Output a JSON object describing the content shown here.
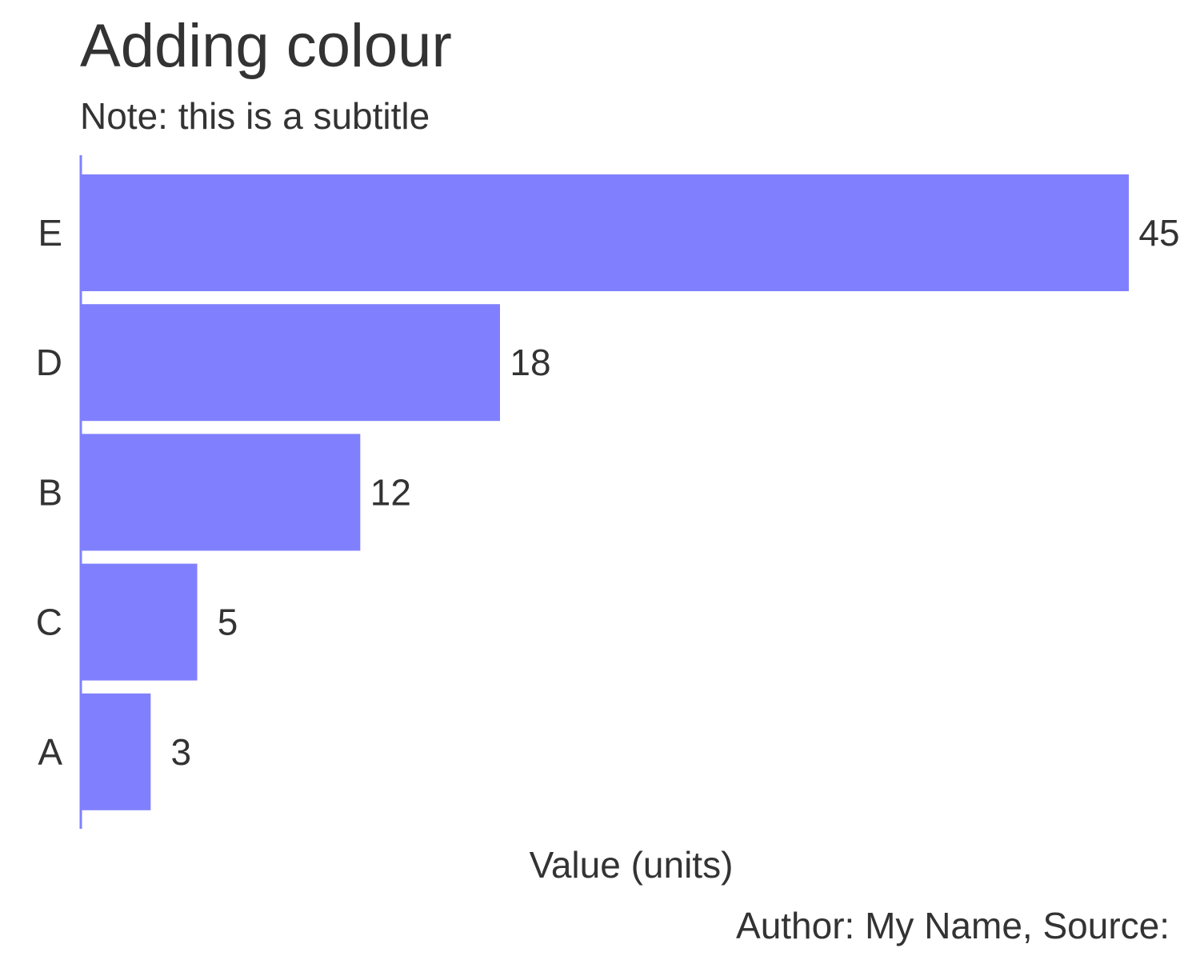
{
  "chart_data": {
    "type": "bar",
    "orientation": "horizontal",
    "title": "Adding colour",
    "subtitle": "Note: this is a subtitle",
    "caption": "Author: My Name, Source:",
    "xlabel": "Value (units)",
    "ylabel": "",
    "categories": [
      "E",
      "D",
      "B",
      "C",
      "A"
    ],
    "values": [
      45,
      18,
      12,
      5,
      3
    ],
    "value_labels": [
      "45",
      "18",
      "12",
      "5",
      "3"
    ],
    "xlim": [
      0,
      45
    ],
    "grid": false,
    "legend": "none",
    "colors": {
      "bar": "#8080ff",
      "axis_line": "#8080ff",
      "text": "#333333"
    }
  }
}
